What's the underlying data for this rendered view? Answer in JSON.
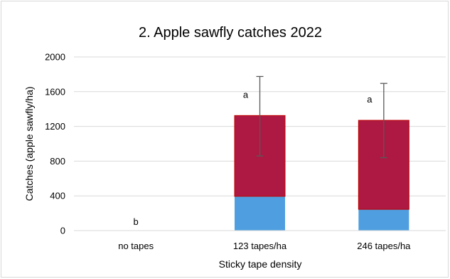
{
  "chart_data": {
    "type": "bar",
    "stacked": true,
    "title": "2. Apple sawfly catches 2022",
    "xlabel": "Sticky tape density",
    "ylabel": "Catches (apple sawfly/ha)",
    "ylim": [
      0,
      2000
    ],
    "yticks": [
      "0",
      "400",
      "800",
      "1200",
      "1600",
      "2000"
    ],
    "grid": true,
    "legend": "none",
    "categories": [
      "no tapes",
      "123 tapes/ha",
      "246 tapes/ha"
    ],
    "series": [
      {
        "values": [
          0,
          395,
          245
        ],
        "color": "#4f9fe0"
      },
      {
        "values": [
          0,
          930,
          1025
        ],
        "color": "#ad1942"
      }
    ],
    "totals": [
      0,
      1325,
      1270
    ],
    "error_bars": [
      {
        "low": 0,
        "high": 0
      },
      {
        "low": 860,
        "high": 1775
      },
      {
        "low": 840,
        "high": 1695
      }
    ],
    "significance_labels": [
      "b",
      "a",
      "a"
    ],
    "colors": {
      "bar_outline": "#c00000",
      "error_bar": "#595959",
      "gridline": "#d9d9d9"
    }
  }
}
